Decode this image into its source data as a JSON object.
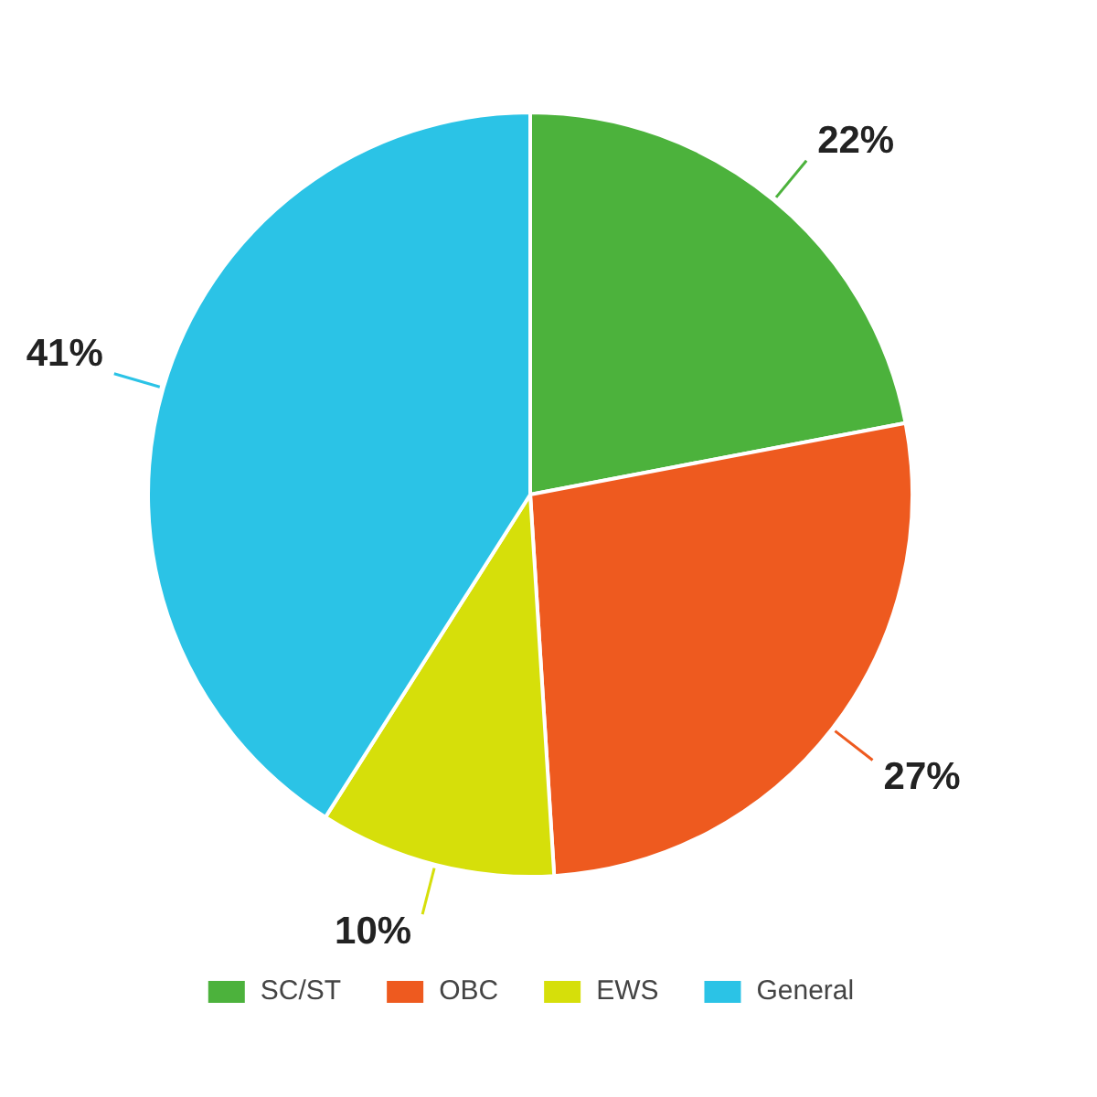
{
  "chart_data": {
    "type": "pie",
    "categories": [
      "SC/ST",
      "OBC",
      "EWS",
      "General"
    ],
    "values": [
      22,
      27,
      10,
      41
    ],
    "colors": [
      "#4cb23c",
      "#ee5a1f",
      "#d6df0a",
      "#2bc3e6"
    ],
    "value_labels": [
      "22%",
      "27%",
      "10%",
      "41%"
    ],
    "legend": "bottom"
  }
}
